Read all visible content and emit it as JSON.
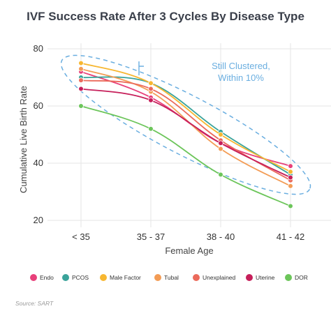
{
  "chart_data": {
    "type": "line",
    "title": "IVF Success Rate After 3 Cycles By Disease Type",
    "xlabel": "Female Age",
    "ylabel": "Cumulative Live Birth Rate",
    "categories": [
      "< 35",
      "35 - 37",
      "38 - 40",
      "41 - 42"
    ],
    "yticks": [
      20,
      40,
      60,
      80
    ],
    "ylim": [
      20,
      80
    ],
    "grid": true,
    "legend_position": "bottom",
    "series": [
      {
        "name": "Endo",
        "color": "#e8407a",
        "values": [
          72,
          63,
          47,
          39
        ]
      },
      {
        "name": "PCOS",
        "color": "#3aa39a",
        "values": [
          70,
          68,
          51,
          36
        ]
      },
      {
        "name": "Male Factor",
        "color": "#f7b731",
        "values": [
          75,
          68,
          50,
          37
        ]
      },
      {
        "name": "Tubal",
        "color": "#f39c55",
        "values": [
          73,
          65,
          45,
          32
        ]
      },
      {
        "name": "Unexplained",
        "color": "#eb6a5b",
        "values": [
          69,
          66,
          48,
          34
        ]
      },
      {
        "name": "Uterine",
        "color": "#c61f5a",
        "values": [
          66,
          62,
          47,
          35
        ]
      },
      {
        "name": "DOR",
        "color": "#6cc55a",
        "values": [
          60,
          52,
          36,
          25
        ]
      }
    ],
    "annotation": {
      "line1": "Still Clustered,",
      "line2": "Within 10%"
    },
    "source": "Source: SART"
  }
}
